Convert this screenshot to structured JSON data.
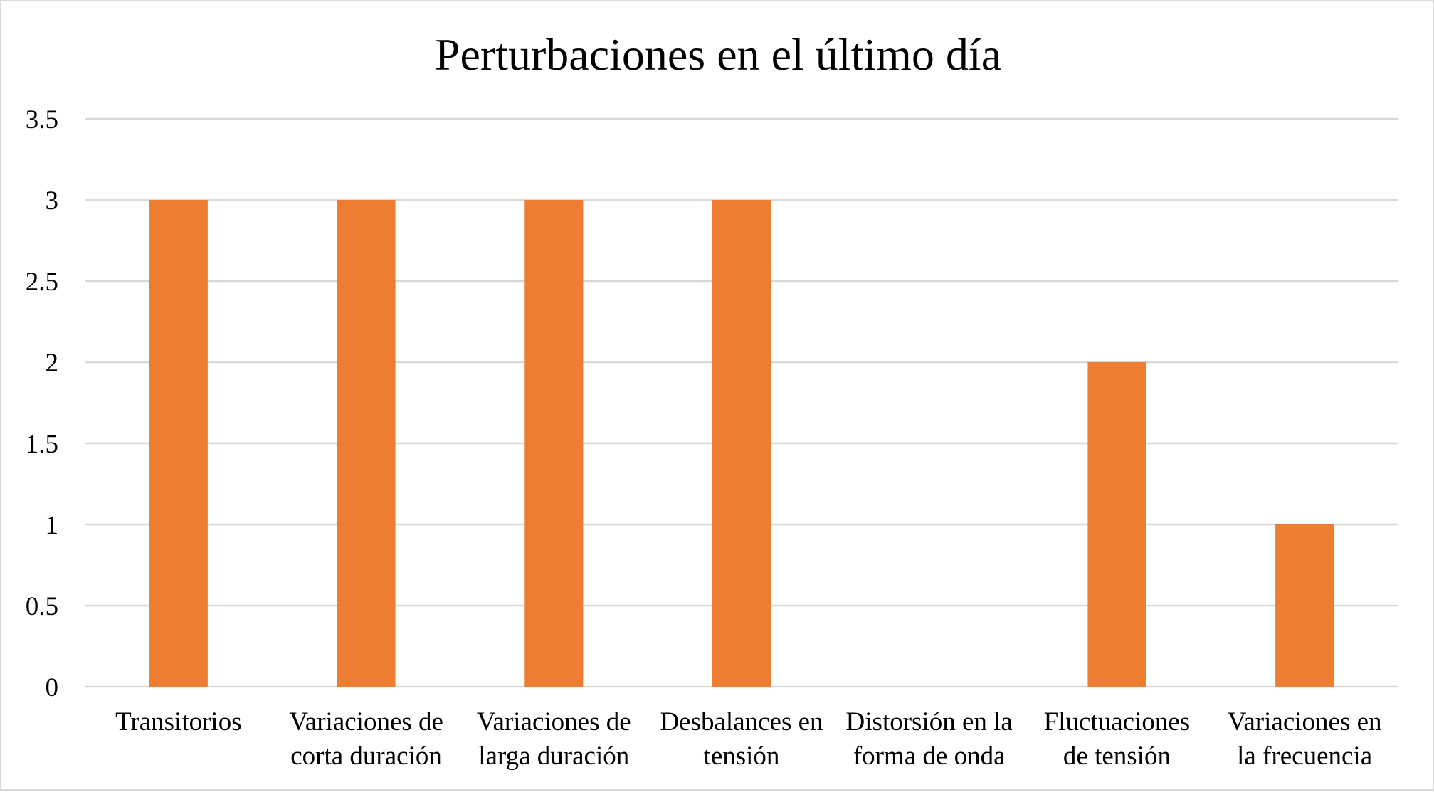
{
  "chart_data": {
    "type": "bar",
    "title": "Perturbaciones en el último día",
    "xlabel": "",
    "ylabel": "",
    "categories": [
      [
        "Transitorios"
      ],
      [
        "Variaciones de",
        "corta duración"
      ],
      [
        "Variaciones de",
        "larga duración"
      ],
      [
        "Desbalances en",
        "tensión"
      ],
      [
        "Distorsión en la",
        "forma de onda"
      ],
      [
        "Fluctuaciones",
        "de tensión"
      ],
      [
        "Variaciones en",
        "la frecuencia"
      ]
    ],
    "values": [
      3,
      3,
      3,
      3,
      0,
      2,
      1
    ],
    "ylim": [
      0,
      3.5
    ],
    "yticks": [
      "0",
      "0.5",
      "1",
      "1.5",
      "2",
      "2.5",
      "3",
      "3.5"
    ],
    "grid": true,
    "legend": "none",
    "colors": {
      "bar": "#ED7D31",
      "grid": "#D9D9D9",
      "border": "#D9D9D9"
    }
  }
}
